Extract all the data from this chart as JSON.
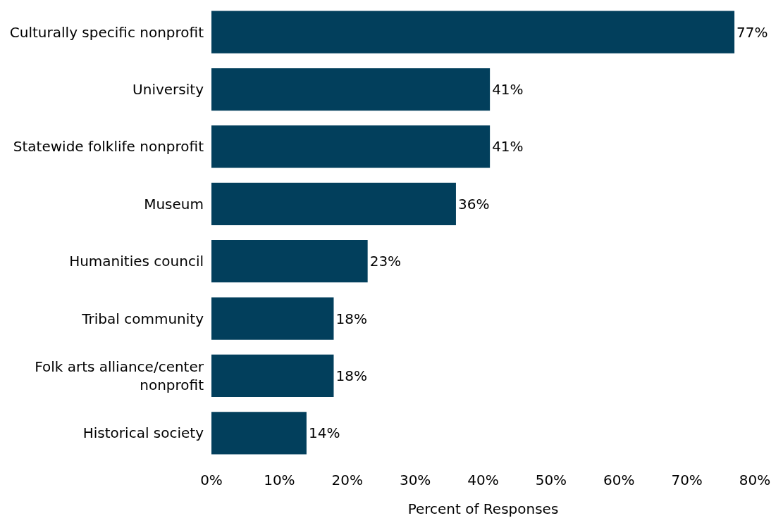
{
  "chart_data": {
    "type": "bar",
    "orientation": "horizontal",
    "xlabel": "Percent of Responses",
    "categories": [
      "Culturally specific nonprofit",
      "University",
      "Statewide folklife nonprofit",
      "Museum",
      "Humanities council",
      "Tribal community",
      "Folk arts alliance/center nonprofit",
      "Historical society"
    ],
    "values": [
      77,
      41,
      41,
      36,
      23,
      18,
      18,
      14
    ],
    "value_labels": [
      "77%",
      "41%",
      "41%",
      "36%",
      "23%",
      "18%",
      "18%",
      "14%"
    ],
    "color": "#023f5c",
    "xlim": [
      0,
      80
    ],
    "xticks": [
      {
        "value": 0,
        "label": "0%"
      },
      {
        "value": 10,
        "label": "10%"
      },
      {
        "value": 20,
        "label": "20%"
      },
      {
        "value": 30,
        "label": "30%"
      },
      {
        "value": 40,
        "label": "40%"
      },
      {
        "value": 50,
        "label": "50%"
      },
      {
        "value": 60,
        "label": "60%"
      },
      {
        "value": 70,
        "label": "70%"
      },
      {
        "value": 80,
        "label": "80%"
      }
    ],
    "legend": false
  }
}
